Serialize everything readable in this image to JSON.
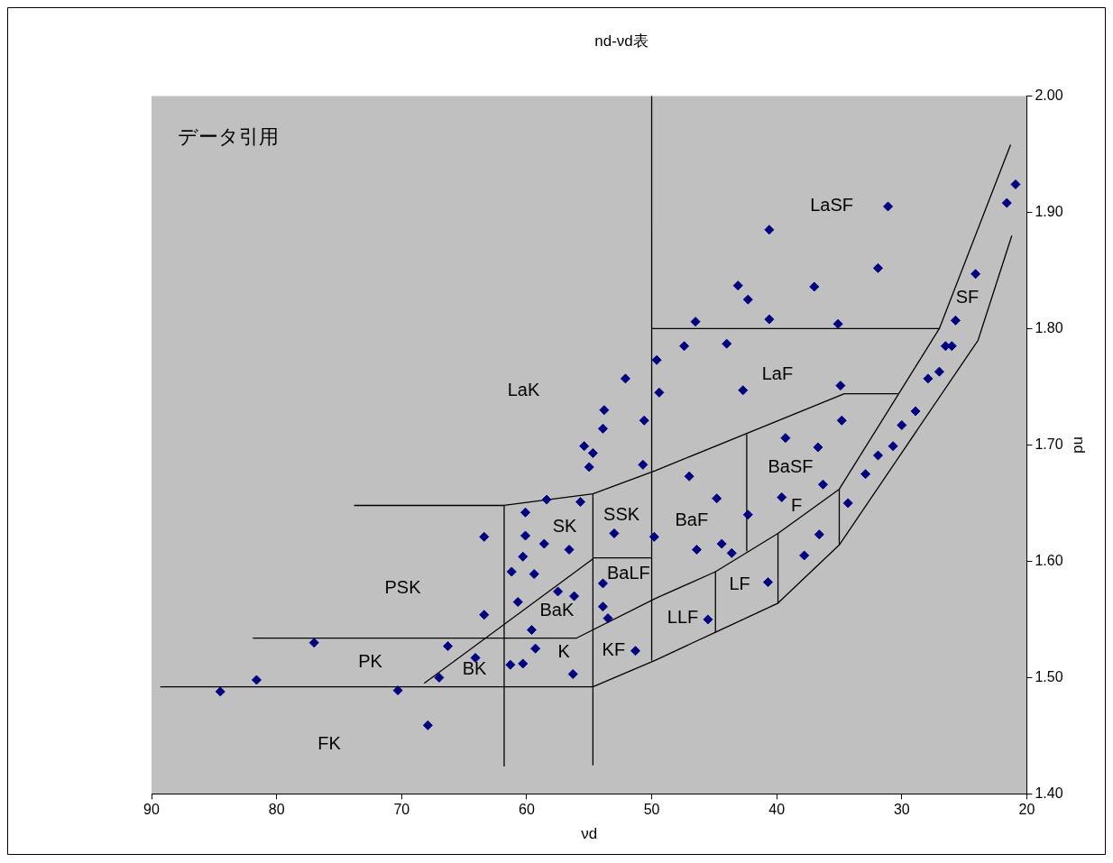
{
  "chart_data": {
    "type": "scatter",
    "title": "nd-νd表",
    "xlabel": "νd",
    "ylabel": "nd",
    "xlim": [
      90,
      20
    ],
    "xticks": [
      90,
      80,
      70,
      60,
      50,
      40,
      30,
      20
    ],
    "ylim": [
      1.4,
      2.0
    ],
    "yticks": [
      {
        "value": 1.4,
        "label": "1.40"
      },
      {
        "value": 1.5,
        "label": "1.50"
      },
      {
        "value": 1.6,
        "label": "1.60"
      },
      {
        "value": 1.7,
        "label": "1.70"
      },
      {
        "value": 1.8,
        "label": "1.80"
      },
      {
        "value": 1.9,
        "label": "1.90"
      },
      {
        "value": 2.0,
        "label": "2.00"
      }
    ],
    "grid": false,
    "legend": false,
    "line_style": "solid",
    "series": [
      {
        "color": "#000080",
        "marker": "diamond",
        "x": [
          84.5,
          81.6,
          77.0,
          70.3,
          67.9,
          67.0,
          66.3,
          64.1,
          63.4,
          63.4,
          60.1,
          58.4,
          55.7,
          60.1,
          60.3,
          61.2,
          58.6,
          59.4,
          56.6,
          57.5,
          60.7,
          56.2,
          59.6,
          59.3,
          61.3,
          60.3,
          56.3,
          53.9,
          53.9,
          53.5,
          53.0,
          51.3,
          50.7,
          50.6,
          49.6,
          49.4,
          49.8,
          52.1,
          53.8,
          53.9,
          55.4,
          54.7,
          55.0,
          47.4,
          46.5,
          44.0,
          43.1,
          42.3,
          40.6,
          40.6,
          42.7,
          47.0,
          44.8,
          46.4,
          44.4,
          43.6,
          42.3,
          39.3,
          39.6,
          40.7,
          37.8,
          45.5,
          37.0,
          31.9,
          31.1,
          35.1,
          34.9,
          34.8,
          36.7,
          36.3,
          36.6,
          34.3,
          32.9,
          31.9,
          30.7,
          30.0,
          28.9,
          27.9,
          27.0,
          26.5,
          26.0,
          25.7,
          24.1,
          21.6,
          20.9
        ],
        "values": [
          1.488,
          1.498,
          1.53,
          1.489,
          1.459,
          1.5,
          1.527,
          1.517,
          1.554,
          1.621,
          1.642,
          1.653,
          1.651,
          1.622,
          1.604,
          1.591,
          1.615,
          1.589,
          1.61,
          1.574,
          1.565,
          1.57,
          1.541,
          1.525,
          1.511,
          1.512,
          1.503,
          1.581,
          1.561,
          1.551,
          1.624,
          1.523,
          1.683,
          1.721,
          1.773,
          1.745,
          1.621,
          1.757,
          1.73,
          1.714,
          1.699,
          1.693,
          1.681,
          1.785,
          1.806,
          1.787,
          1.837,
          1.825,
          1.808,
          1.885,
          1.747,
          1.673,
          1.654,
          1.61,
          1.615,
          1.607,
          1.64,
          1.706,
          1.655,
          1.582,
          1.605,
          1.55,
          1.836,
          1.852,
          1.905,
          1.804,
          1.751,
          1.721,
          1.698,
          1.666,
          1.623,
          1.65,
          1.675,
          1.691,
          1.699,
          1.717,
          1.729,
          1.757,
          1.763,
          1.785,
          1.785,
          1.807,
          1.847,
          1.908,
          1.924
        ]
      },
      {
        "type": "line",
        "color": "#000000",
        "x": [
          73.8,
          61.8,
          54.7,
          49.7,
          34.6,
          30.3
        ],
        "values": [
          1.648,
          1.648,
          1.658,
          1.678,
          1.744,
          1.744
        ]
      },
      {
        "type": "line",
        "color": "#000000",
        "x": [
          50,
          50
        ],
        "values": [
          2.0,
          1.515
        ]
      },
      {
        "type": "line",
        "color": "#000000",
        "x": [
          50,
          27.0
        ],
        "values": [
          1.8,
          1.8
        ]
      },
      {
        "type": "line",
        "color": "#000000",
        "x": [
          89.3,
          54.7,
          49.7,
          44.9,
          39.9,
          35.0,
          23.9,
          21.2
        ],
        "values": [
          1.492,
          1.492,
          1.515,
          1.539,
          1.564,
          1.614,
          1.79,
          1.88
        ]
      },
      {
        "type": "line",
        "color": "#000000",
        "marker": "none",
        "x": [
          81.9,
          56.0,
          49.7,
          44.9,
          39.9,
          35.0,
          27.0,
          21.3
        ],
        "values": [
          1.534,
          1.534,
          1.568,
          1.591,
          1.624,
          1.662,
          1.8,
          1.958
        ]
      },
      {
        "type": "line",
        "color": "#000000",
        "x": [
          61.8,
          61.8
        ],
        "values": [
          1.648,
          1.424
        ]
      },
      {
        "type": "line",
        "color": "#000000",
        "x": [
          54.7,
          54.7
        ],
        "values": [
          1.658,
          1.425
        ]
      },
      {
        "type": "line",
        "color": "#000000",
        "x": [
          68.2,
          54.7
        ],
        "values": [
          1.495,
          1.602
        ]
      },
      {
        "type": "line",
        "color": "#000000",
        "x": [
          54.7,
          50
        ],
        "values": [
          1.603,
          1.603
        ]
      },
      {
        "type": "line",
        "color": "#000000",
        "x": [
          44.9,
          44.9
        ],
        "values": [
          1.591,
          1.539
        ]
      },
      {
        "type": "line",
        "color": "#000000",
        "x": [
          39.9,
          39.9
        ],
        "values": [
          1.624,
          1.564
        ]
      },
      {
        "type": "line",
        "color": "#000000",
        "x": [
          35.0,
          35.0
        ],
        "values": [
          1.662,
          1.614
        ]
      },
      {
        "type": "line",
        "color": "#000000",
        "x": [
          42.4,
          42.4
        ],
        "values": [
          1.709,
          1.609
        ]
      }
    ],
    "annotations": [
      "データ引用",
      "LaSF",
      "SF",
      "LaF",
      "LaK",
      "BaSF",
      "SSK",
      "BaF",
      "SK",
      "F",
      "BaLF",
      "LF",
      "PSK",
      "BaK",
      "LLF",
      "K",
      "KF",
      "PK",
      "BK",
      "FK"
    ]
  }
}
